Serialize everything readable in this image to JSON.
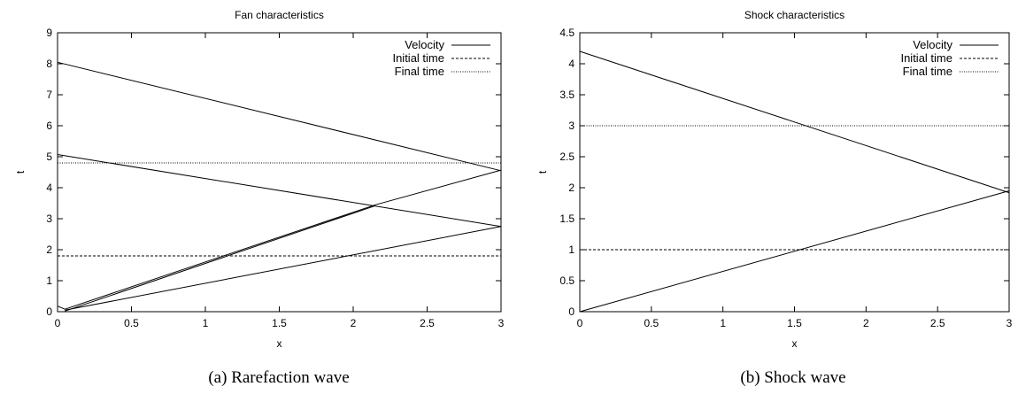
{
  "chart_data": [
    {
      "type": "line",
      "title": "Fan characteristics",
      "xlabel": "x",
      "ylabel": "t",
      "xlim": [
        0,
        3
      ],
      "ylim": [
        0,
        9
      ],
      "xticks": [
        "0",
        "0.5",
        "1",
        "1.5",
        "2",
        "2.5",
        "3"
      ],
      "yticks": [
        "0",
        "1",
        "2",
        "3",
        "4",
        "5",
        "6",
        "7",
        "8",
        "9"
      ],
      "grid": false,
      "legend_position": "top-right",
      "legend": [
        "Velocity",
        "Initial time",
        "Final time"
      ],
      "series": [
        {
          "name": "Velocity",
          "style": "solid",
          "segments": [
            [
              [
                0,
                8.05
              ],
              [
                3,
                4.55
              ]
            ],
            [
              [
                0,
                5.07
              ],
              [
                3,
                2.75
              ]
            ],
            [
              [
                0,
                0.18
              ],
              [
                0.05,
                0.08
              ]
            ],
            [
              [
                0.05,
                0.08
              ],
              [
                2.15,
                3.45
              ],
              [
                3,
                4.57
              ]
            ],
            [
              [
                0.05,
                0.02
              ],
              [
                2.15,
                3.42
              ]
            ],
            [
              [
                0.05,
                0.05
              ],
              [
                3,
                2.75
              ]
            ]
          ]
        },
        {
          "name": "Initial time",
          "style": "dashed",
          "segments": [
            [
              [
                0,
                1.8
              ],
              [
                3,
                1.8
              ]
            ]
          ]
        },
        {
          "name": "Final time",
          "style": "dotted",
          "segments": [
            [
              [
                0,
                4.8
              ],
              [
                3,
                4.8
              ]
            ]
          ]
        }
      ],
      "caption": "(a) Rarefaction wave"
    },
    {
      "type": "line",
      "title": "Shock characteristics",
      "xlabel": "x",
      "ylabel": "t",
      "xlim": [
        0,
        3
      ],
      "ylim": [
        0,
        4.5
      ],
      "xticks": [
        "0",
        "0.5",
        "1",
        "1.5",
        "2",
        "2.5",
        "3"
      ],
      "yticks": [
        "0",
        "0.5",
        "1",
        "1.5",
        "2",
        "2.5",
        "3",
        "3.5",
        "4",
        "4.5"
      ],
      "grid": false,
      "legend_position": "top-right",
      "legend": [
        "Velocity",
        "Initial time",
        "Final time"
      ],
      "series": [
        {
          "name": "Velocity",
          "style": "solid",
          "segments": [
            [
              [
                0,
                4.2
              ],
              [
                3,
                1.92
              ]
            ],
            [
              [
                0,
                0
              ],
              [
                3,
                1.95
              ]
            ]
          ]
        },
        {
          "name": "Initial time",
          "style": "dashed",
          "segments": [
            [
              [
                0,
                1
              ],
              [
                3,
                1
              ]
            ]
          ]
        },
        {
          "name": "Final time",
          "style": "dotted",
          "segments": [
            [
              [
                0,
                3
              ],
              [
                3,
                3
              ]
            ]
          ]
        }
      ],
      "caption": "(b) Shock wave"
    }
  ]
}
